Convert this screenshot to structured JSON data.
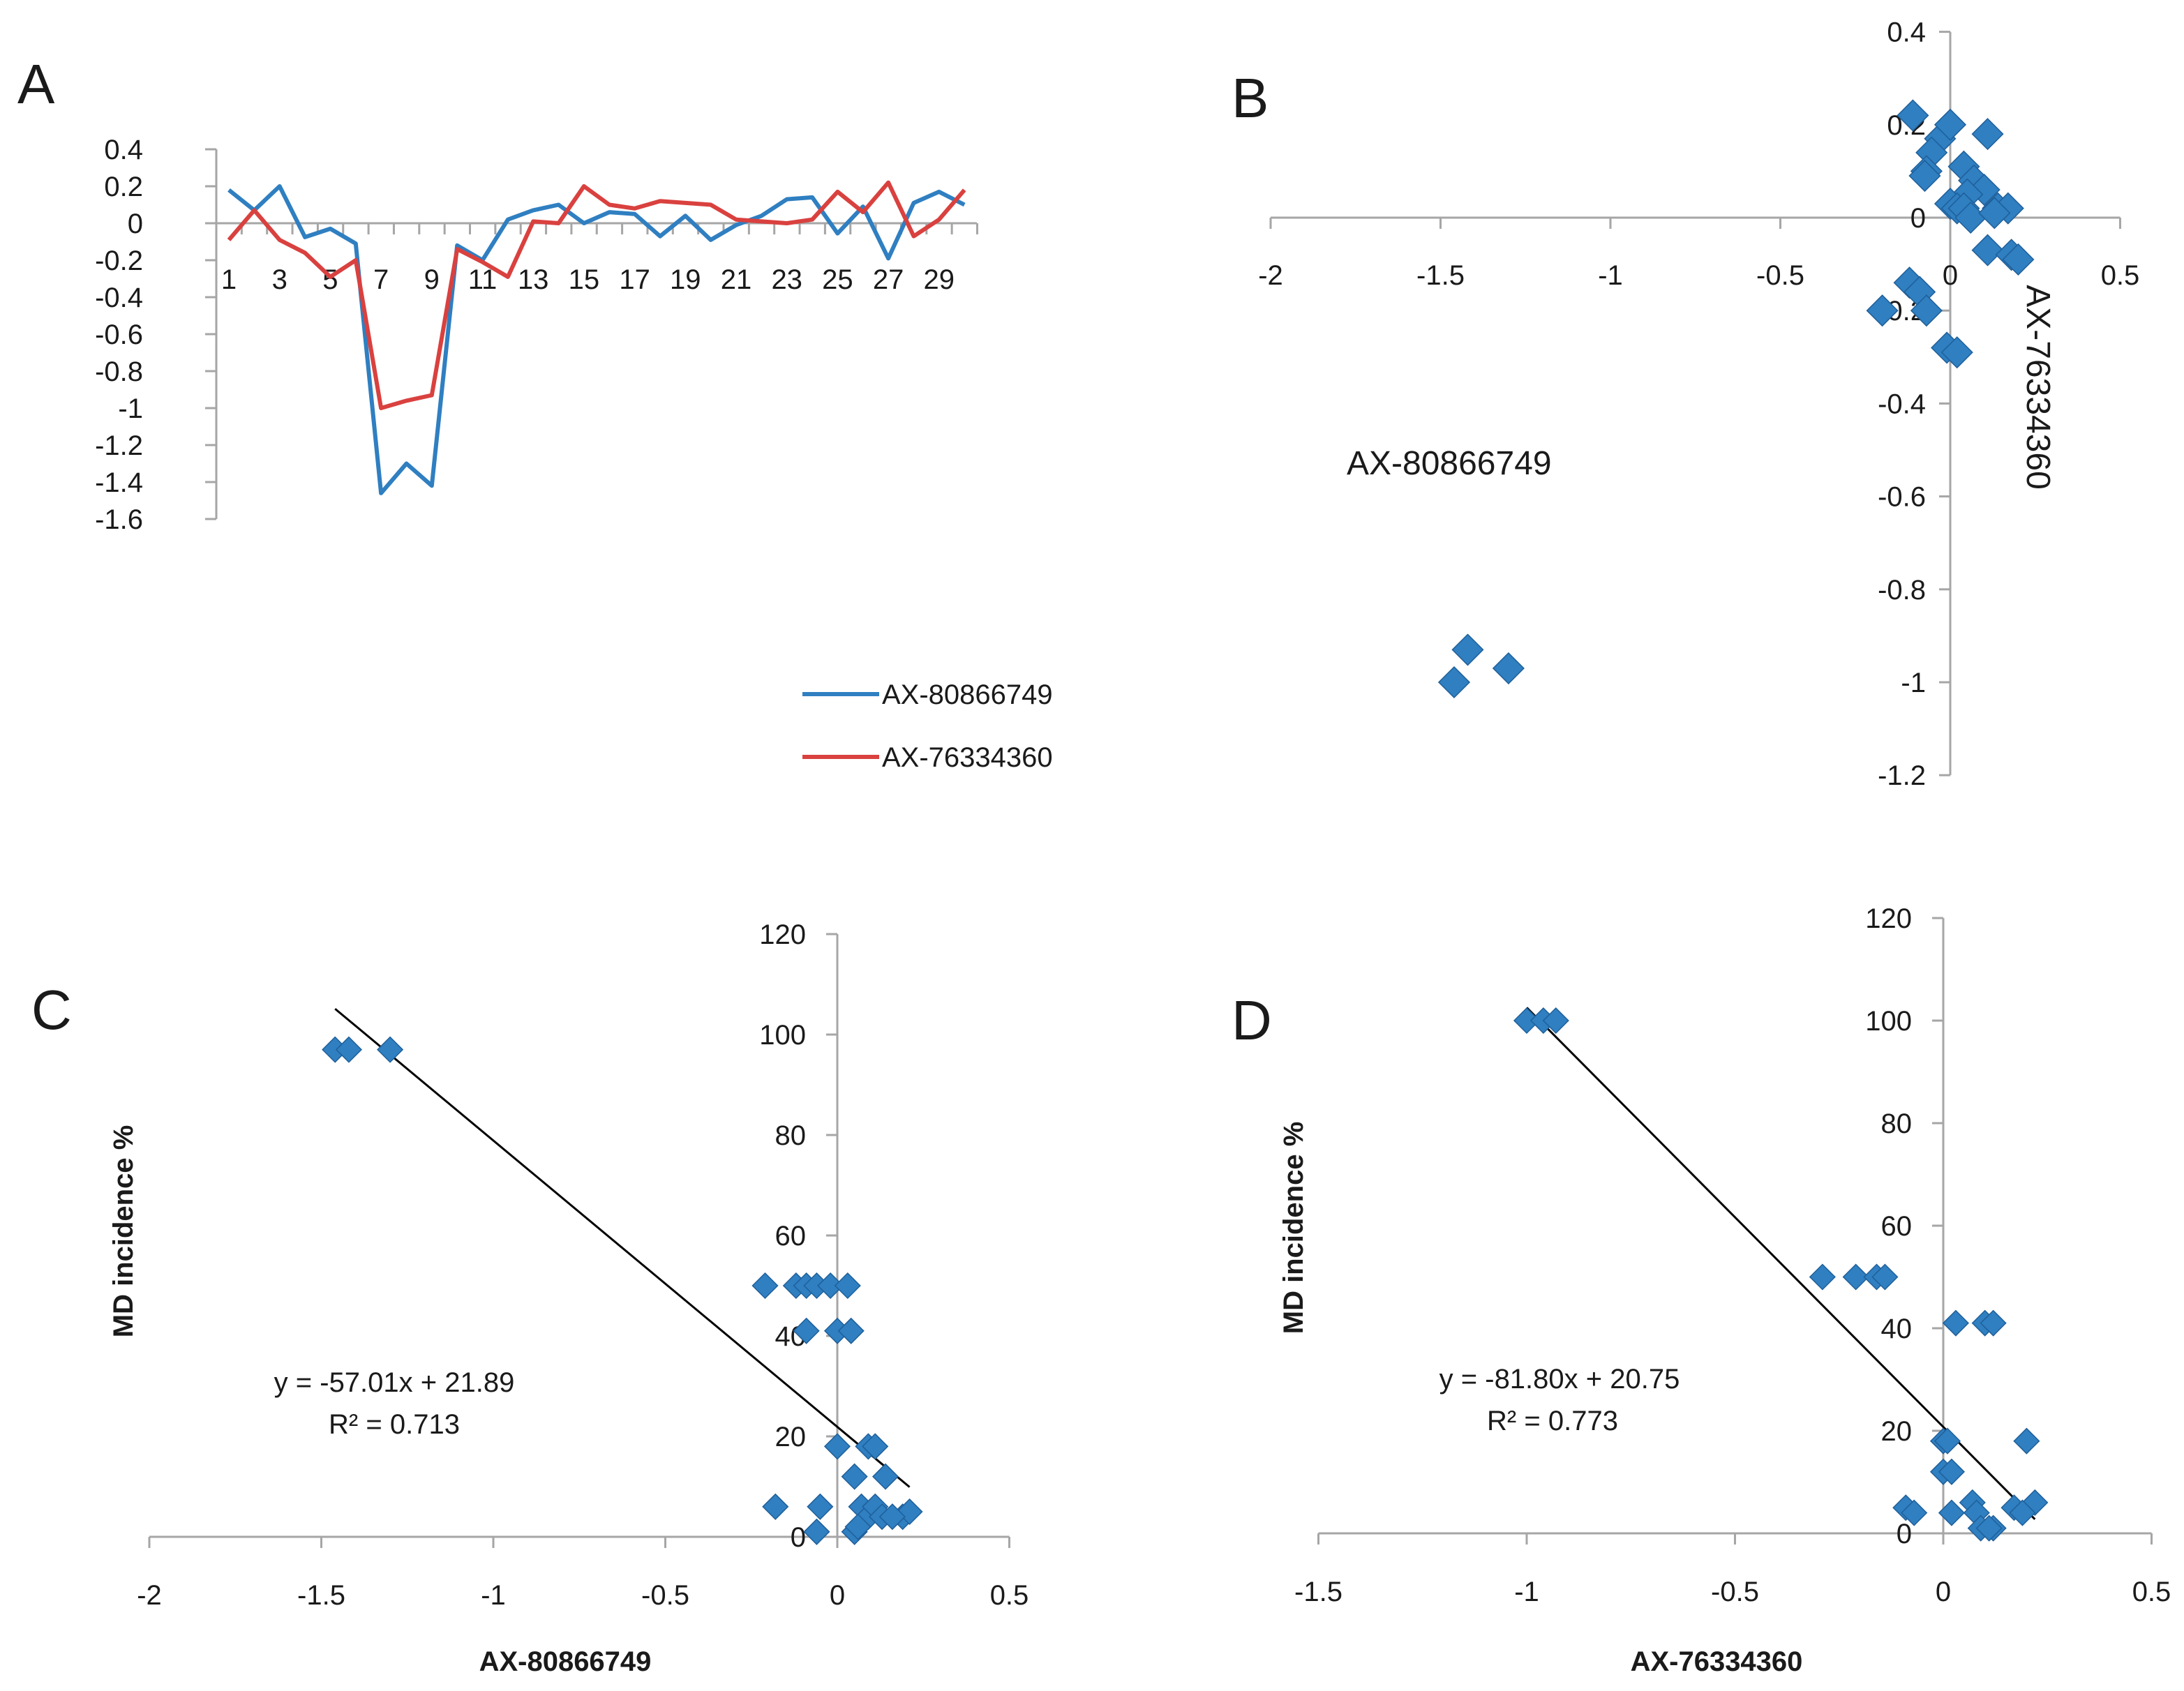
{
  "colors": {
    "blue": "#2f7fc1",
    "red": "#d9413f",
    "axis": "#a6a6a6",
    "text": "#1a1a1a",
    "fit": "#000000"
  },
  "chart_data": [
    {
      "panel": "A",
      "type": "line",
      "x": [
        1,
        2,
        3,
        4,
        5,
        6,
        7,
        8,
        9,
        10,
        11,
        12,
        13,
        14,
        15,
        16,
        17,
        18,
        19,
        20,
        21,
        22,
        23,
        24,
        25,
        26,
        27,
        28,
        29,
        30
      ],
      "x_tick_labels": [
        "1",
        "3",
        "5",
        "7",
        "9",
        "11",
        "13",
        "15",
        "17",
        "19",
        "21",
        "23",
        "25",
        "27",
        "29"
      ],
      "ylim": [
        -1.6,
        0.4
      ],
      "y_tick_labels": [
        "0.4",
        "0.2",
        "0",
        "-0.2",
        "-0.4",
        "-0.6",
        "-0.8",
        "-1",
        "-1.2",
        "-1.4",
        "-1.6"
      ],
      "grid": false,
      "legend_position": "lower-right",
      "series": [
        {
          "name": "AX-80866749",
          "color": "blue",
          "values": [
            0.18,
            0.07,
            0.2,
            -0.075,
            -0.03,
            -0.11,
            -1.46,
            -1.3,
            -1.42,
            -0.12,
            -0.2,
            0.02,
            0.07,
            0.1,
            0.0,
            0.06,
            0.05,
            -0.07,
            0.04,
            -0.09,
            -0.01,
            0.04,
            0.13,
            0.14,
            -0.055,
            0.09,
            -0.19,
            0.11,
            0.17,
            0.1
          ]
        },
        {
          "name": "AX-76334360",
          "color": "red",
          "values": [
            -0.09,
            0.07,
            -0.09,
            -0.16,
            -0.29,
            -0.2,
            -1.0,
            -0.96,
            -0.93,
            -0.14,
            -0.21,
            -0.29,
            0.01,
            0.0,
            0.2,
            0.1,
            0.08,
            0.12,
            0.11,
            0.1,
            0.02,
            0.01,
            0.0,
            0.02,
            0.17,
            0.06,
            0.22,
            -0.07,
            0.02,
            0.18
          ]
        }
      ]
    },
    {
      "panel": "B",
      "type": "scatter",
      "xlabel": "AX-80866749",
      "ylabel": "AX-76334360",
      "xlim": [
        -2,
        0.5
      ],
      "ylim": [
        -1.2,
        0.4
      ],
      "x_tick_labels": [
        "-2",
        "-1.5",
        "-1",
        "-0.5",
        "0",
        "0.5"
      ],
      "y_tick_labels": [
        "0.4",
        "0.2",
        "0",
        "-0.2",
        "-0.4",
        "-0.6",
        "-0.8",
        "-1",
        "-1.2"
      ],
      "points": [
        [
          -1.42,
          -0.93
        ],
        [
          -1.46,
          -1.0
        ],
        [
          -1.3,
          -0.97
        ],
        [
          -0.11,
          0.22
        ],
        [
          -0.03,
          0.17
        ],
        [
          0.0,
          0.2
        ],
        [
          -0.055,
          0.14
        ],
        [
          -0.07,
          0.1
        ],
        [
          -0.075,
          0.09
        ],
        [
          0.11,
          0.18
        ],
        [
          0.04,
          0.11
        ],
        [
          0.07,
          0.08
        ],
        [
          0.1,
          0.06
        ],
        [
          0.05,
          0.05
        ],
        [
          0.0,
          0.03
        ],
        [
          0.02,
          0.02
        ],
        [
          0.04,
          0.02
        ],
        [
          0.06,
          0.0
        ],
        [
          0.14,
          0.02
        ],
        [
          0.17,
          0.02
        ],
        [
          0.13,
          0.01
        ],
        [
          0.11,
          -0.07
        ],
        [
          0.18,
          -0.08
        ],
        [
          0.2,
          -0.09
        ],
        [
          -0.2,
          -0.2
        ],
        [
          -0.12,
          -0.14
        ],
        [
          -0.09,
          -0.16
        ],
        [
          -0.07,
          -0.2
        ],
        [
          -0.01,
          -0.28
        ],
        [
          0.02,
          -0.29
        ]
      ]
    },
    {
      "panel": "C",
      "type": "scatter",
      "xlabel": "AX-80866749",
      "ylabel": "MD incidence %",
      "xlim": [
        -2,
        0.5
      ],
      "ylim": [
        0,
        120
      ],
      "x_tick_labels": [
        "-2",
        "-1.5",
        "-1",
        "-0.5",
        "0",
        "0.5"
      ],
      "y_tick_labels": [
        "120",
        "100",
        "80",
        "60",
        "40",
        "20",
        "0"
      ],
      "equation": "y = -57.01x + 21.89",
      "r_squared": "R² = 0.713",
      "fit": {
        "slope": -57.01,
        "intercept": 21.89,
        "x_range": [
          -1.46,
          0.21
        ]
      },
      "points": [
        [
          -1.46,
          97
        ],
        [
          -1.42,
          97
        ],
        [
          -1.3,
          97
        ],
        [
          -0.21,
          50
        ],
        [
          -0.12,
          50
        ],
        [
          -0.09,
          50
        ],
        [
          -0.06,
          50
        ],
        [
          -0.02,
          50
        ],
        [
          0.03,
          50
        ],
        [
          -0.09,
          41
        ],
        [
          0.0,
          41
        ],
        [
          0.04,
          41
        ],
        [
          0.0,
          18
        ],
        [
          0.09,
          18
        ],
        [
          0.11,
          18
        ],
        [
          0.05,
          12
        ],
        [
          0.14,
          12
        ],
        [
          -0.18,
          6
        ],
        [
          -0.05,
          6
        ],
        [
          0.07,
          6
        ],
        [
          0.09,
          4
        ],
        [
          0.11,
          6
        ],
        [
          0.13,
          4
        ],
        [
          0.19,
          4
        ],
        [
          0.21,
          5
        ],
        [
          0.16,
          4
        ],
        [
          -0.06,
          1
        ],
        [
          0.05,
          1
        ],
        [
          0.06,
          2
        ]
      ]
    },
    {
      "panel": "D",
      "type": "scatter",
      "xlabel": "AX-76334360",
      "ylabel": "MD incidence %",
      "xlim": [
        -1.5,
        0.5
      ],
      "ylim": [
        0,
        120
      ],
      "x_tick_labels": [
        "-1.5",
        "-1",
        "-0.5",
        "0",
        "0.5"
      ],
      "y_tick_labels": [
        "120",
        "100",
        "80",
        "60",
        "40",
        "20",
        "0"
      ],
      "equation": "y = -81.80x + 20.75",
      "r_squared": "R² = 0.773",
      "fit": {
        "slope": -81.8,
        "intercept": 20.75,
        "x_range": [
          -1.0,
          0.22
        ]
      },
      "points": [
        [
          -1.0,
          100
        ],
        [
          -0.96,
          100
        ],
        [
          -0.93,
          100
        ],
        [
          -0.29,
          50
        ],
        [
          -0.21,
          50
        ],
        [
          -0.16,
          50
        ],
        [
          -0.14,
          50
        ],
        [
          0.03,
          41
        ],
        [
          0.1,
          41
        ],
        [
          0.12,
          41
        ],
        [
          0.0,
          18
        ],
        [
          0.01,
          18
        ],
        [
          0.2,
          18
        ],
        [
          0.0,
          12
        ],
        [
          0.02,
          12
        ],
        [
          -0.09,
          5
        ],
        [
          -0.07,
          4
        ],
        [
          0.02,
          4
        ],
        [
          0.07,
          6
        ],
        [
          0.08,
          4
        ],
        [
          0.17,
          5
        ],
        [
          0.22,
          6
        ],
        [
          0.19,
          4
        ],
        [
          0.09,
          1
        ],
        [
          0.12,
          1
        ],
        [
          0.11,
          1
        ]
      ]
    }
  ]
}
